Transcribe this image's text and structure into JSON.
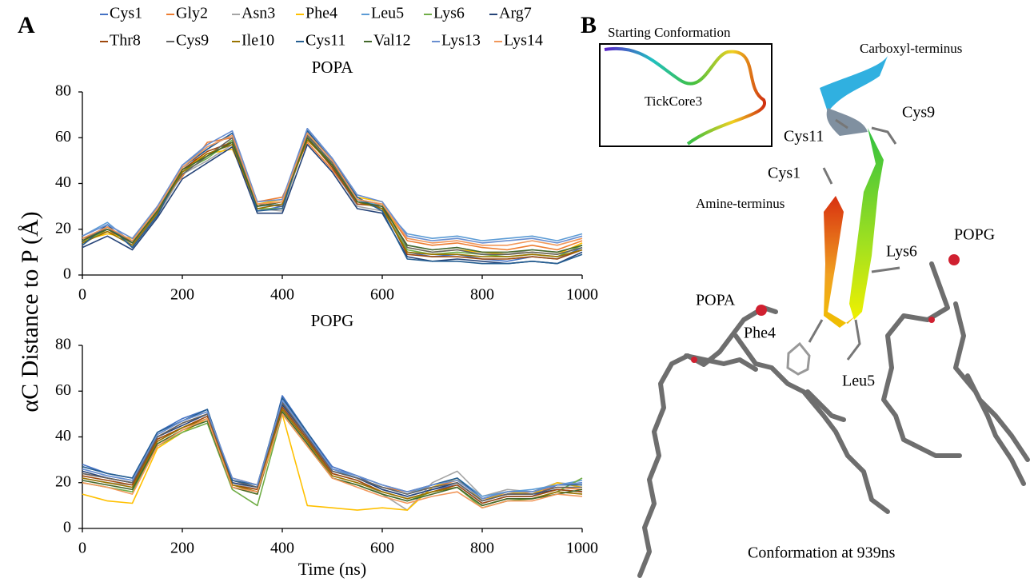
{
  "panel_a": {
    "label": "A"
  },
  "chart_data": [
    {
      "type": "line",
      "title": "POPA",
      "ylabel": "αC Distance to P (Å)",
      "x": [
        0,
        50,
        100,
        150,
        200,
        250,
        300,
        350,
        400,
        450,
        500,
        550,
        600,
        650,
        700,
        750,
        800,
        850,
        900,
        950,
        1000
      ],
      "xlim": [
        0,
        1000
      ],
      "xticks": [
        0,
        200,
        400,
        600,
        800,
        1000
      ],
      "ylim": [
        0,
        80
      ],
      "yticks": [
        0,
        20,
        40,
        60,
        80
      ],
      "series": [
        {
          "name": "Cys1",
          "color": "#4472c4",
          "values": [
            14,
            22,
            12,
            27,
            47,
            55,
            62,
            28,
            30,
            63,
            50,
            33,
            29,
            10,
            8,
            9,
            7,
            6,
            8,
            7,
            12
          ]
        },
        {
          "name": "Gly2",
          "color": "#ed7d31",
          "values": [
            16,
            19,
            15,
            30,
            43,
            58,
            60,
            32,
            34,
            58,
            46,
            31,
            31,
            15,
            13,
            14,
            12,
            11,
            13,
            11,
            15
          ]
        },
        {
          "name": "Asn3",
          "color": "#a5a5a5",
          "values": [
            13,
            21,
            13,
            26,
            44,
            50,
            57,
            29,
            28,
            61,
            47,
            30,
            28,
            13,
            11,
            12,
            10,
            9,
            11,
            10,
            13
          ]
        },
        {
          "name": "Phe4",
          "color": "#ffc000",
          "values": [
            15,
            18,
            16,
            29,
            46,
            53,
            55,
            31,
            33,
            59,
            49,
            34,
            32,
            12,
            10,
            11,
            10,
            9,
            10,
            9,
            14
          ]
        },
        {
          "name": "Leu5",
          "color": "#5b9bd5",
          "values": [
            17,
            23,
            14,
            28,
            48,
            56,
            61,
            30,
            31,
            64,
            51,
            33,
            30,
            18,
            16,
            17,
            15,
            16,
            17,
            15,
            18
          ]
        },
        {
          "name": "Lys6",
          "color": "#70ad47",
          "values": [
            14,
            20,
            15,
            27,
            45,
            51,
            59,
            29,
            29,
            62,
            48,
            32,
            29,
            11,
            9,
            10,
            9,
            8,
            9,
            8,
            13
          ]
        },
        {
          "name": "Arg7",
          "color": "#264478",
          "values": [
            12,
            17,
            11,
            25,
            42,
            49,
            56,
            27,
            27,
            57,
            45,
            29,
            27,
            8,
            6,
            7,
            6,
            5,
            6,
            5,
            10
          ]
        },
        {
          "name": "Thr8",
          "color": "#9e480e",
          "values": [
            15,
            21,
            14,
            28,
            46,
            54,
            58,
            30,
            32,
            60,
            47,
            31,
            30,
            9,
            8,
            8,
            7,
            7,
            8,
            7,
            11
          ]
        },
        {
          "name": "Cys9",
          "color": "#636363",
          "values": [
            16,
            20,
            15,
            29,
            44,
            52,
            60,
            31,
            30,
            61,
            49,
            33,
            31,
            12,
            10,
            11,
            9,
            9,
            10,
            9,
            12
          ]
        },
        {
          "name": "Ile10",
          "color": "#997300",
          "values": [
            14,
            19,
            13,
            27,
            45,
            53,
            57,
            29,
            31,
            59,
            48,
            32,
            29,
            10,
            9,
            9,
            8,
            8,
            9,
            8,
            11
          ]
        },
        {
          "name": "Cys11",
          "color": "#255e91",
          "values": [
            13,
            22,
            12,
            26,
            47,
            55,
            62,
            28,
            29,
            63,
            50,
            34,
            28,
            7,
            6,
            6,
            5,
            5,
            6,
            5,
            9
          ]
        },
        {
          "name": "Val12",
          "color": "#43682b",
          "values": [
            15,
            20,
            14,
            28,
            46,
            52,
            58,
            30,
            32,
            60,
            48,
            32,
            30,
            13,
            11,
            12,
            10,
            10,
            11,
            10,
            13
          ]
        },
        {
          "name": "Lys13",
          "color": "#698ed0",
          "values": [
            17,
            22,
            16,
            30,
            48,
            57,
            63,
            32,
            33,
            64,
            51,
            35,
            32,
            17,
            15,
            16,
            14,
            15,
            16,
            14,
            17
          ]
        },
        {
          "name": "Lys14",
          "color": "#f1975a",
          "values": [
            16,
            21,
            15,
            29,
            47,
            56,
            61,
            31,
            32,
            62,
            50,
            33,
            31,
            16,
            14,
            15,
            13,
            13,
            15,
            13,
            16
          ]
        }
      ]
    },
    {
      "type": "line",
      "title": "POPG",
      "xlabel": "Time (ns)",
      "x": [
        0,
        50,
        100,
        150,
        200,
        250,
        300,
        350,
        400,
        450,
        500,
        550,
        600,
        650,
        700,
        750,
        800,
        850,
        900,
        950,
        1000
      ],
      "xlim": [
        0,
        1000
      ],
      "xticks": [
        0,
        200,
        400,
        600,
        800,
        1000
      ],
      "ylim": [
        0,
        80
      ],
      "yticks": [
        0,
        20,
        40,
        60,
        80
      ],
      "series": [
        {
          "color": "#4472c4",
          "values": [
            28,
            24,
            22,
            42,
            48,
            52,
            18,
            16,
            58,
            42,
            27,
            23,
            17,
            14,
            17,
            19,
            11,
            14,
            14,
            19,
            20
          ]
        },
        {
          "color": "#ed7d31",
          "values": [
            24,
            22,
            20,
            40,
            46,
            50,
            22,
            19,
            55,
            40,
            25,
            22,
            18,
            16,
            18,
            21,
            13,
            15,
            16,
            18,
            17
          ]
        },
        {
          "color": "#a5a5a5",
          "values": [
            22,
            20,
            19,
            38,
            44,
            48,
            20,
            17,
            52,
            38,
            24,
            21,
            15,
            8,
            20,
            25,
            14,
            17,
            16,
            20,
            19
          ]
        },
        {
          "color": "#ffc000",
          "values": [
            15,
            12,
            11,
            35,
            42,
            48,
            18,
            15,
            50,
            10,
            9,
            8,
            9,
            8,
            18,
            22,
            12,
            16,
            15,
            20,
            18
          ]
        },
        {
          "color": "#5b9bd5",
          "values": [
            26,
            23,
            21,
            41,
            47,
            51,
            21,
            18,
            56,
            41,
            26,
            22,
            18,
            15,
            19,
            22,
            14,
            16,
            17,
            19,
            21
          ]
        },
        {
          "color": "#70ad47",
          "values": [
            20,
            18,
            16,
            36,
            42,
            46,
            17,
            10,
            50,
            36,
            22,
            19,
            15,
            12,
            16,
            18,
            9,
            12,
            13,
            16,
            22
          ]
        },
        {
          "color": "#264478",
          "values": [
            25,
            22,
            20,
            40,
            45,
            50,
            20,
            18,
            54,
            40,
            25,
            22,
            17,
            14,
            17,
            20,
            12,
            15,
            15,
            17,
            16
          ]
        },
        {
          "color": "#9e480e",
          "values": [
            23,
            21,
            19,
            39,
            44,
            49,
            19,
            17,
            53,
            39,
            24,
            21,
            16,
            13,
            16,
            19,
            11,
            14,
            14,
            17,
            16
          ]
        },
        {
          "color": "#636363",
          "values": [
            24,
            22,
            20,
            40,
            46,
            50,
            21,
            18,
            55,
            40,
            25,
            22,
            18,
            15,
            18,
            20,
            12,
            15,
            15,
            18,
            18
          ]
        },
        {
          "color": "#997300",
          "values": [
            22,
            20,
            18,
            38,
            44,
            48,
            19,
            16,
            52,
            38,
            23,
            20,
            16,
            13,
            16,
            18,
            10,
            13,
            13,
            16,
            15
          ]
        },
        {
          "color": "#255e91",
          "values": [
            27,
            24,
            22,
            42,
            47,
            52,
            21,
            19,
            57,
            42,
            26,
            23,
            19,
            16,
            19,
            22,
            13,
            16,
            16,
            19,
            19
          ]
        },
        {
          "color": "#43682b",
          "values": [
            21,
            19,
            17,
            37,
            43,
            47,
            18,
            15,
            51,
            37,
            22,
            19,
            15,
            12,
            15,
            18,
            10,
            13,
            13,
            15,
            17
          ]
        },
        {
          "color": "#698ed0",
          "values": [
            26,
            23,
            21,
            41,
            47,
            51,
            22,
            19,
            56,
            41,
            26,
            23,
            19,
            16,
            19,
            21,
            13,
            16,
            16,
            19,
            20
          ]
        },
        {
          "color": "#f1975a",
          "values": [
            20,
            18,
            15,
            36,
            43,
            48,
            18,
            16,
            50,
            36,
            22,
            18,
            14,
            11,
            14,
            16,
            9,
            12,
            12,
            15,
            14
          ]
        }
      ]
    }
  ],
  "panel_b": {
    "label": "B",
    "inset_title": "Starting Conformation",
    "inset_label": "TickCore3",
    "labels": [
      "Carboxyl-terminus",
      "Cys9",
      "Cys11",
      "Cys1",
      "Amine-terminus",
      "Lys6",
      "POPG",
      "POPA",
      "Phe4",
      "Leu5"
    ],
    "caption": "Conformation at 939ns"
  }
}
